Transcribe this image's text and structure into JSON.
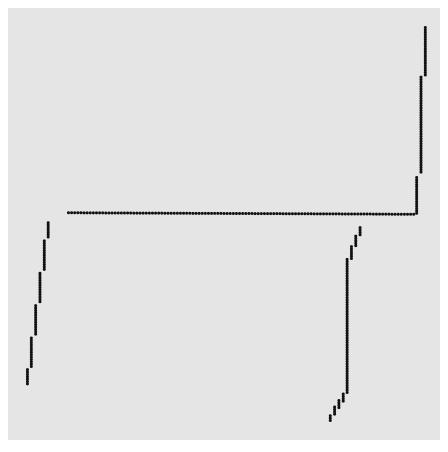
{
  "chart_data": {
    "type": "scatter",
    "title": "",
    "xlabel": "",
    "ylabel": "",
    "grid": false,
    "legend": "none",
    "xlim": [
      0,
      100
    ],
    "ylim": [
      0,
      100
    ],
    "colors": {
      "panel": "#e5e5e5",
      "point": "#111111"
    },
    "point_color": "#111111",
    "series": [
      {
        "values_note": "",
        "x": [],
        "y": []
      }
    ]
  }
}
